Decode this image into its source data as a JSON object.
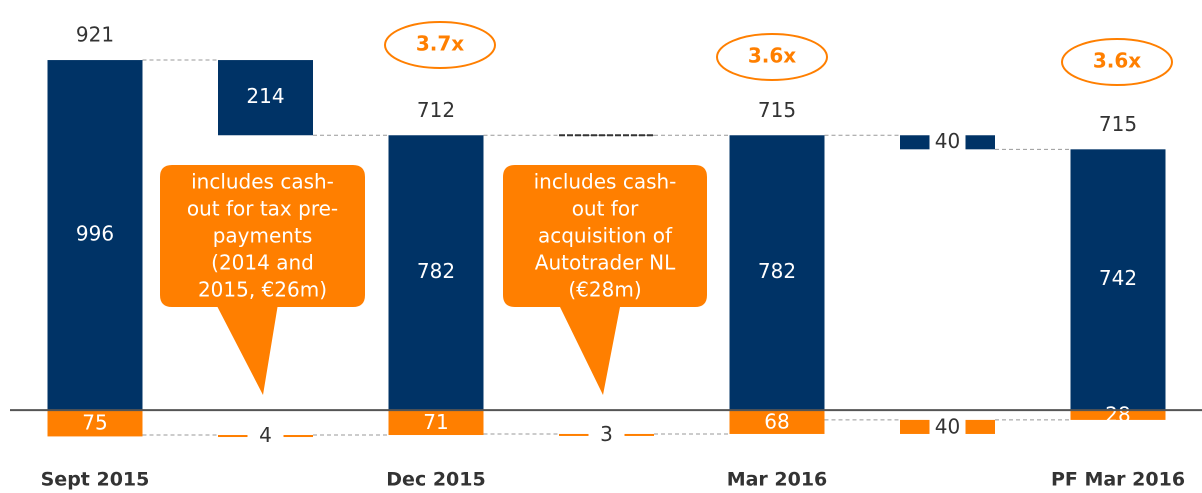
{
  "chart_data": {
    "type": "waterfall",
    "categories": [
      "Sept 2015",
      null,
      "Dec 2015",
      null,
      "Mar 2016",
      null,
      "PF Mar 2016"
    ],
    "series": [
      {
        "color": "#003366",
        "values": [
          996,
          -214,
          782,
          null,
          782,
          -40,
          742
        ],
        "value_labels": [
          "996",
          "214",
          "782",
          null,
          "782",
          "40",
          "742"
        ]
      },
      {
        "color": "#ff7f00",
        "values": [
          75,
          -4,
          71,
          -3,
          68,
          -40,
          28
        ],
        "value_labels": [
          "75",
          "4",
          "71",
          "3",
          "68",
          "40",
          "28"
        ]
      },
      {
        "values": [
          921,
          null,
          712,
          null,
          715,
          null,
          715
        ]
      }
    ],
    "ylim": [
      -236,
      1110
    ],
    "multiples": [
      "3.7x",
      "3.6x",
      "3.6x"
    ],
    "callouts": [
      [
        "includes cash-",
        "out for tax pre-",
        "payments",
        "(2014 and",
        "2015, €26m)"
      ],
      [
        "includes cash-",
        "out for",
        "acquisition of",
        "Autotrader NL",
        "(€28m)"
      ]
    ]
  }
}
